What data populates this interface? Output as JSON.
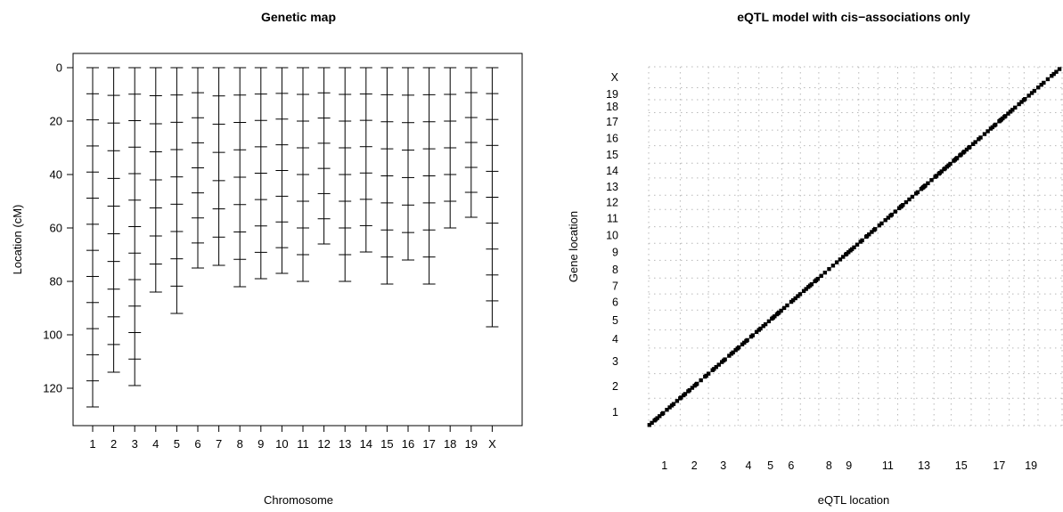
{
  "chart_data": [
    {
      "type": "genetic-map",
      "title": "Genetic map",
      "xlabel": "Chromosome",
      "ylabel": "Location (cM)",
      "ylim": [
        0,
        130
      ],
      "reversed_y": true,
      "yticks": [
        0,
        20,
        40,
        60,
        80,
        100,
        120
      ],
      "chromosomes": [
        "1",
        "2",
        "3",
        "4",
        "5",
        "6",
        "7",
        "8",
        "9",
        "10",
        "11",
        "12",
        "13",
        "14",
        "15",
        "16",
        "17",
        "18",
        "19",
        "X"
      ],
      "chromosome_lengths": [
        127,
        114,
        119,
        84,
        92,
        75,
        74,
        82,
        79,
        77,
        80,
        66,
        80,
        69,
        81,
        72,
        81,
        60,
        56,
        97
      ],
      "marker_spacing_cM": 10
    },
    {
      "type": "scatter",
      "title": "eQTL model with cis−associations only",
      "xlabel": "eQTL location",
      "ylabel": "Gene location",
      "x_tick_labels": [
        "1",
        "2",
        "3",
        "4",
        "5",
        "6",
        "8",
        "9",
        "11",
        "13",
        "15",
        "17",
        "19"
      ],
      "y_tick_labels": [
        "1",
        "2",
        "3",
        "4",
        "5",
        "6",
        "7",
        "8",
        "9",
        "10",
        "11",
        "12",
        "13",
        "14",
        "15",
        "16",
        "17",
        "18",
        "19",
        "X"
      ],
      "grid": "dotted",
      "description_points": "cis eQTL: one point per gene at its own genome position along the diagonal",
      "genome_lengths_cM": [
        127,
        114,
        119,
        84,
        92,
        75,
        74,
        82,
        79,
        77,
        80,
        66,
        80,
        69,
        81,
        72,
        81,
        60,
        56,
        97
      ]
    }
  ]
}
